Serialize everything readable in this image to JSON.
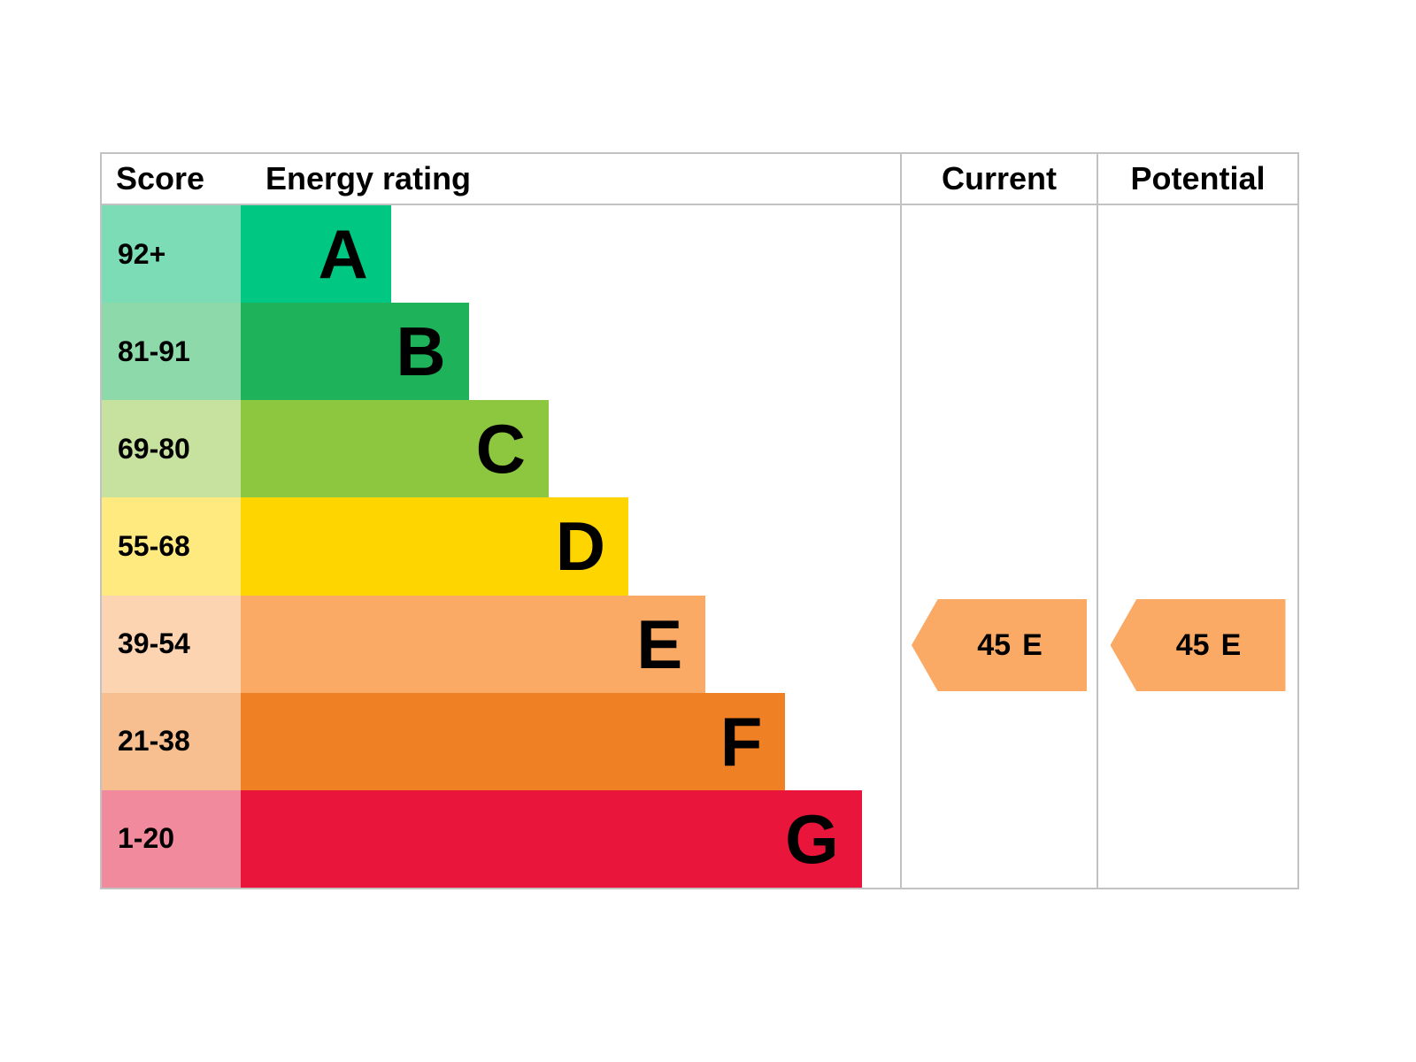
{
  "table": {
    "headers": {
      "score": "Score",
      "energy_rating": "Energy rating",
      "current": "Current",
      "potential": "Potential"
    },
    "bands": [
      {
        "score": "92+",
        "letter": "A",
        "bar_color": "#00c781",
        "score_color": "#7cdcb6",
        "width_pct": 22.8
      },
      {
        "score": "81-91",
        "letter": "B",
        "bar_color": "#1eb25a",
        "score_color": "#8ed9a9",
        "width_pct": 34.6
      },
      {
        "score": "69-80",
        "letter": "C",
        "bar_color": "#8dc63f",
        "score_color": "#c6e29e",
        "width_pct": 46.7
      },
      {
        "score": "55-68",
        "letter": "D",
        "bar_color": "#ffd500",
        "score_color": "#ffea7f",
        "width_pct": 58.8
      },
      {
        "score": "39-54",
        "letter": "E",
        "bar_color": "#fbaa65",
        "score_color": "#fcd4b1",
        "width_pct": 70.5
      },
      {
        "score": "21-38",
        "letter": "F",
        "bar_color": "#ef8023",
        "score_color": "#f7bf90",
        "width_pct": 82.6
      },
      {
        "score": "1-20",
        "letter": "G",
        "bar_color": "#e9153b",
        "score_color": "#f28a9d",
        "width_pct": 94.2
      }
    ],
    "current": {
      "value": "45",
      "letter": "E",
      "arrow_color": "#fbaa65"
    },
    "potential": {
      "value": "45",
      "letter": "E",
      "arrow_color": "#fbaa65"
    }
  },
  "chart_data": {
    "type": "bar",
    "title": "",
    "categories": [
      "A",
      "B",
      "C",
      "D",
      "E",
      "F",
      "G"
    ],
    "score_ranges": [
      "92+",
      "81-91",
      "69-80",
      "55-68",
      "39-54",
      "21-38",
      "1-20"
    ],
    "bar_width_pct": [
      22.8,
      34.6,
      46.7,
      58.8,
      70.5,
      82.6,
      94.2
    ],
    "band_colors": [
      "#00c781",
      "#1eb25a",
      "#8dc63f",
      "#ffd500",
      "#fbaa65",
      "#ef8023",
      "#e9153b"
    ],
    "column_headers": [
      "Score",
      "Energy rating",
      "Current",
      "Potential"
    ],
    "current_rating": {
      "score": 45,
      "band": "E"
    },
    "potential_rating": {
      "score": 45,
      "band": "E"
    }
  }
}
